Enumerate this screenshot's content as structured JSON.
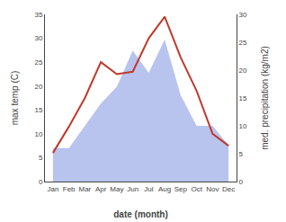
{
  "chart_data": {
    "type": "line",
    "xlabel": "date (month)",
    "ylabel": "max temp (C)",
    "y2label": "med. precipitation (kg/m2)",
    "categories": [
      "Jan",
      "Feb",
      "Mar",
      "Apr",
      "May",
      "Jun",
      "Jul",
      "Aug",
      "Sep",
      "Oct",
      "Nov",
      "Dec"
    ],
    "series": [
      {
        "type": "area",
        "axis": "y2",
        "color": "#b8c4ee",
        "values": [
          6.0,
          6.0,
          10.0,
          14.0,
          17.0,
          23.5,
          19.5,
          25.5,
          15.5,
          10.0,
          10.0,
          6.5
        ]
      },
      {
        "type": "line",
        "color": "#c0392b",
        "values": [
          6.0,
          11.5,
          17.5,
          25.0,
          22.5,
          23.0,
          30.0,
          34.5,
          26.0,
          19.0,
          10.0,
          7.5
        ]
      }
    ],
    "ylim": [
      0,
      35
    ],
    "yticks": [
      0,
      5,
      10,
      15,
      20,
      25,
      30,
      35
    ],
    "y2lim": [
      0,
      30
    ],
    "y2ticks": [
      0,
      5,
      10,
      15,
      20,
      25,
      30
    ],
    "grid": false
  }
}
